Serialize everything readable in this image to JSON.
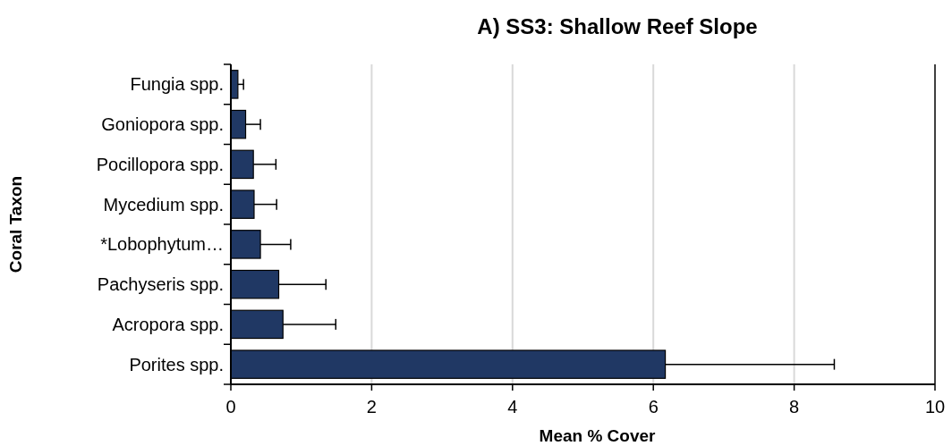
{
  "chart_data": {
    "type": "bar",
    "orientation": "horizontal",
    "title": "A) SS3: Shallow Reef Slope",
    "xlabel": "Mean % Cover",
    "ylabel": "Coral Taxon",
    "categories": [
      "Fungia spp.",
      "Goniopora spp.",
      "Pocillopora spp.",
      "Mycedium spp.",
      "*Lobophytum…",
      "Pachyseris spp.",
      "Acropora spp.",
      "Porites spp."
    ],
    "values": [
      0.1,
      0.21,
      0.32,
      0.33,
      0.42,
      0.68,
      0.74,
      6.17
    ],
    "errors": [
      [
        0.1,
        0.18
      ],
      [
        0.21,
        0.42
      ],
      [
        0.32,
        0.64
      ],
      [
        0.33,
        0.65
      ],
      [
        0.42,
        0.85
      ],
      [
        0.68,
        1.35
      ],
      [
        0.74,
        1.49
      ],
      [
        6.17,
        8.57
      ]
    ],
    "color": "#203864",
    "xlim": [
      0,
      10
    ],
    "xticks": [
      0,
      2,
      4,
      6,
      8,
      10
    ],
    "grid": "x"
  }
}
